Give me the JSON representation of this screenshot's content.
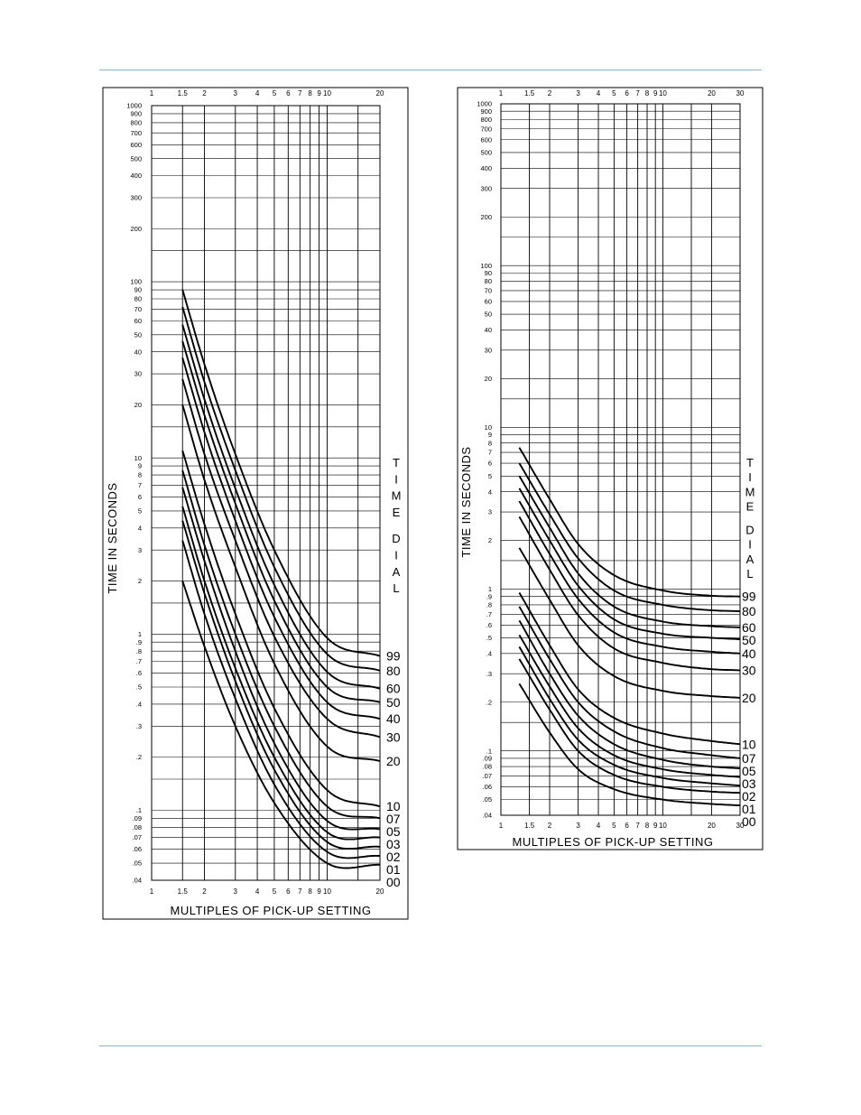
{
  "chart_data": [
    {
      "type": "line",
      "xscale": "log",
      "yscale": "log",
      "xlim": [
        1,
        20
      ],
      "ylim": [
        0.04,
        1000
      ],
      "xticks": [
        "1",
        "1.5",
        "2",
        "3",
        "4",
        "5",
        "6",
        "7",
        "8",
        "9",
        "10",
        "20"
      ],
      "yticks": [
        "1000",
        "900",
        "800",
        "700",
        "600",
        "500",
        "400",
        "300",
        "200",
        "100",
        "90",
        "80",
        "70",
        "60",
        "50",
        "40",
        "30",
        "20",
        "10",
        "9",
        "8",
        "7",
        "6",
        "5",
        "4",
        "3",
        "2",
        "1",
        ".9",
        ".8",
        ".7",
        ".6",
        ".5",
        ".4",
        ".3",
        ".2",
        ".1",
        ".09",
        ".08",
        ".07",
        ".06",
        ".05",
        ".04"
      ],
      "xlabel": "MULTIPLES OF PICK-UP SETTING",
      "ylabel": "TIME IN SECONDS",
      "legend_title": "TIME DIAL",
      "series": [
        {
          "name": "99",
          "x": [
            1.5,
            2,
            3,
            5,
            10,
            20
          ],
          "y": [
            90,
            34,
            10.5,
            3.0,
            0.95,
            0.75
          ]
        },
        {
          "name": "80",
          "x": [
            1.5,
            2,
            3,
            5,
            10,
            20
          ],
          "y": [
            72,
            27,
            8.5,
            2.4,
            0.77,
            0.62
          ]
        },
        {
          "name": "60",
          "x": [
            1.5,
            2,
            3,
            5,
            10,
            20
          ],
          "y": [
            57,
            21.5,
            6.7,
            1.9,
            0.61,
            0.49
          ]
        },
        {
          "name": "50",
          "x": [
            1.5,
            2,
            3,
            5,
            10,
            20
          ],
          "y": [
            46,
            17.5,
            5.5,
            1.55,
            0.5,
            0.41
          ]
        },
        {
          "name": "40",
          "x": [
            1.5,
            2,
            3,
            5,
            10,
            20
          ],
          "y": [
            37,
            14,
            4.4,
            1.25,
            0.41,
            0.33
          ]
        },
        {
          "name": "30",
          "x": [
            1.5,
            2,
            3,
            5,
            10,
            20
          ],
          "y": [
            28,
            10.5,
            3.4,
            0.97,
            0.33,
            0.26
          ]
        },
        {
          "name": "20",
          "x": [
            1.5,
            2,
            3,
            5,
            10,
            20
          ],
          "y": [
            20,
            7.5,
            2.4,
            0.68,
            0.23,
            0.19
          ]
        },
        {
          "name": "10",
          "x": [
            1.5,
            2,
            3,
            5,
            10,
            20
          ],
          "y": [
            11,
            4.2,
            1.3,
            0.38,
            0.13,
            0.105
          ]
        },
        {
          "name": "07",
          "x": [
            1.5,
            2,
            3,
            5,
            10,
            20
          ],
          "y": [
            8.5,
            3.2,
            1.0,
            0.3,
            0.105,
            0.09
          ]
        },
        {
          "name": "05",
          "x": [
            1.5,
            2,
            3,
            5,
            10,
            20
          ],
          "y": [
            6.8,
            2.6,
            0.8,
            0.24,
            0.087,
            0.078
          ]
        },
        {
          "name": "03",
          "x": [
            1.5,
            2,
            3,
            5,
            10,
            20
          ],
          "y": [
            5.3,
            2.0,
            0.64,
            0.2,
            0.075,
            0.07
          ]
        },
        {
          "name": "02",
          "x": [
            1.5,
            2,
            3,
            5,
            10,
            20
          ],
          "y": [
            4.4,
            1.7,
            0.54,
            0.17,
            0.066,
            0.062
          ]
        },
        {
          "name": "01",
          "x": [
            1.5,
            2,
            3,
            5,
            10,
            20
          ],
          "y": [
            3.4,
            1.3,
            0.43,
            0.14,
            0.058,
            0.055
          ]
        },
        {
          "name": "00",
          "x": [
            1.5,
            2,
            3,
            5,
            10,
            20
          ],
          "y": [
            2.0,
            0.85,
            0.3,
            0.11,
            0.05,
            0.049
          ]
        }
      ]
    },
    {
      "type": "line",
      "xscale": "log",
      "yscale": "log",
      "xlim": [
        1,
        30
      ],
      "ylim": [
        0.04,
        1000
      ],
      "xticks": [
        "1",
        "1.5",
        "2",
        "3",
        "4",
        "5",
        "6",
        "7",
        "8",
        "9",
        "10",
        "20",
        "30"
      ],
      "yticks": [
        "1000",
        "900",
        "800",
        "700",
        "600",
        "500",
        "400",
        "300",
        "200",
        "100",
        "90",
        "80",
        "70",
        "60",
        "50",
        "40",
        "30",
        "20",
        "10",
        "9",
        "8",
        "7",
        "6",
        "5",
        "4",
        "3",
        "2",
        "1",
        ".9",
        ".8",
        ".7",
        ".6",
        ".5",
        ".4",
        ".3",
        ".2",
        ".1",
        ".09",
        ".08",
        ".07",
        ".06",
        ".05",
        ".04"
      ],
      "xlabel": "MULTIPLES OF PICK-UP SETTING",
      "ylabel": "TIME IN SECONDS",
      "legend_title": "TIME DIAL",
      "series": [
        {
          "name": "99",
          "x": [
            1.3,
            2,
            3,
            5,
            10,
            20,
            30
          ],
          "y": [
            7.5,
            3.6,
            1.9,
            1.22,
            0.98,
            0.91,
            0.9
          ]
        },
        {
          "name": "80",
          "x": [
            1.3,
            2,
            3,
            5,
            10,
            20,
            30
          ],
          "y": [
            6.0,
            2.9,
            1.55,
            0.98,
            0.8,
            0.74,
            0.73
          ]
        },
        {
          "name": "60",
          "x": [
            1.3,
            2,
            3,
            5,
            10,
            20,
            30
          ],
          "y": [
            5.0,
            2.4,
            1.25,
            0.78,
            0.63,
            0.59,
            0.58
          ]
        },
        {
          "name": "50",
          "x": [
            1.3,
            2,
            3,
            5,
            10,
            20,
            30
          ],
          "y": [
            4.2,
            2.0,
            1.05,
            0.65,
            0.53,
            0.5,
            0.49
          ]
        },
        {
          "name": "40",
          "x": [
            1.3,
            2,
            3,
            5,
            10,
            20,
            30
          ],
          "y": [
            3.5,
            1.65,
            0.87,
            0.54,
            0.44,
            0.41,
            0.4
          ]
        },
        {
          "name": "30",
          "x": [
            1.3,
            2,
            3,
            5,
            10,
            20,
            30
          ],
          "y": [
            2.8,
            1.32,
            0.69,
            0.43,
            0.35,
            0.32,
            0.315
          ]
        },
        {
          "name": "20",
          "x": [
            1.3,
            2,
            3,
            5,
            10,
            20,
            30
          ],
          "y": [
            1.8,
            0.86,
            0.45,
            0.29,
            0.235,
            0.218,
            0.213
          ]
        },
        {
          "name": "10",
          "x": [
            1.3,
            2,
            3,
            5,
            10,
            20,
            30
          ],
          "y": [
            0.95,
            0.45,
            0.24,
            0.16,
            0.128,
            0.115,
            0.11
          ]
        },
        {
          "name": "07",
          "x": [
            1.3,
            2,
            3,
            5,
            10,
            20,
            30
          ],
          "y": [
            0.78,
            0.37,
            0.2,
            0.132,
            0.104,
            0.094,
            0.09
          ]
        },
        {
          "name": "05",
          "x": [
            1.3,
            2,
            3,
            5,
            10,
            20,
            30
          ],
          "y": [
            0.64,
            0.3,
            0.165,
            0.11,
            0.088,
            0.08,
            0.078
          ]
        },
        {
          "name": "03",
          "x": [
            1.3,
            2,
            3,
            5,
            10,
            20,
            30
          ],
          "y": [
            0.52,
            0.25,
            0.138,
            0.094,
            0.077,
            0.071,
            0.069
          ]
        },
        {
          "name": "02",
          "x": [
            1.3,
            2,
            3,
            5,
            10,
            20,
            30
          ],
          "y": [
            0.44,
            0.21,
            0.117,
            0.082,
            0.068,
            0.063,
            0.061
          ]
        },
        {
          "name": "01",
          "x": [
            1.3,
            2,
            3,
            5,
            10,
            20,
            30
          ],
          "y": [
            0.37,
            0.18,
            0.1,
            0.071,
            0.06,
            0.056,
            0.055
          ]
        },
        {
          "name": "00",
          "x": [
            1.3,
            2,
            3,
            5,
            10,
            20,
            30
          ],
          "y": [
            0.26,
            0.13,
            0.077,
            0.058,
            0.05,
            0.047,
            0.046
          ]
        }
      ]
    }
  ]
}
